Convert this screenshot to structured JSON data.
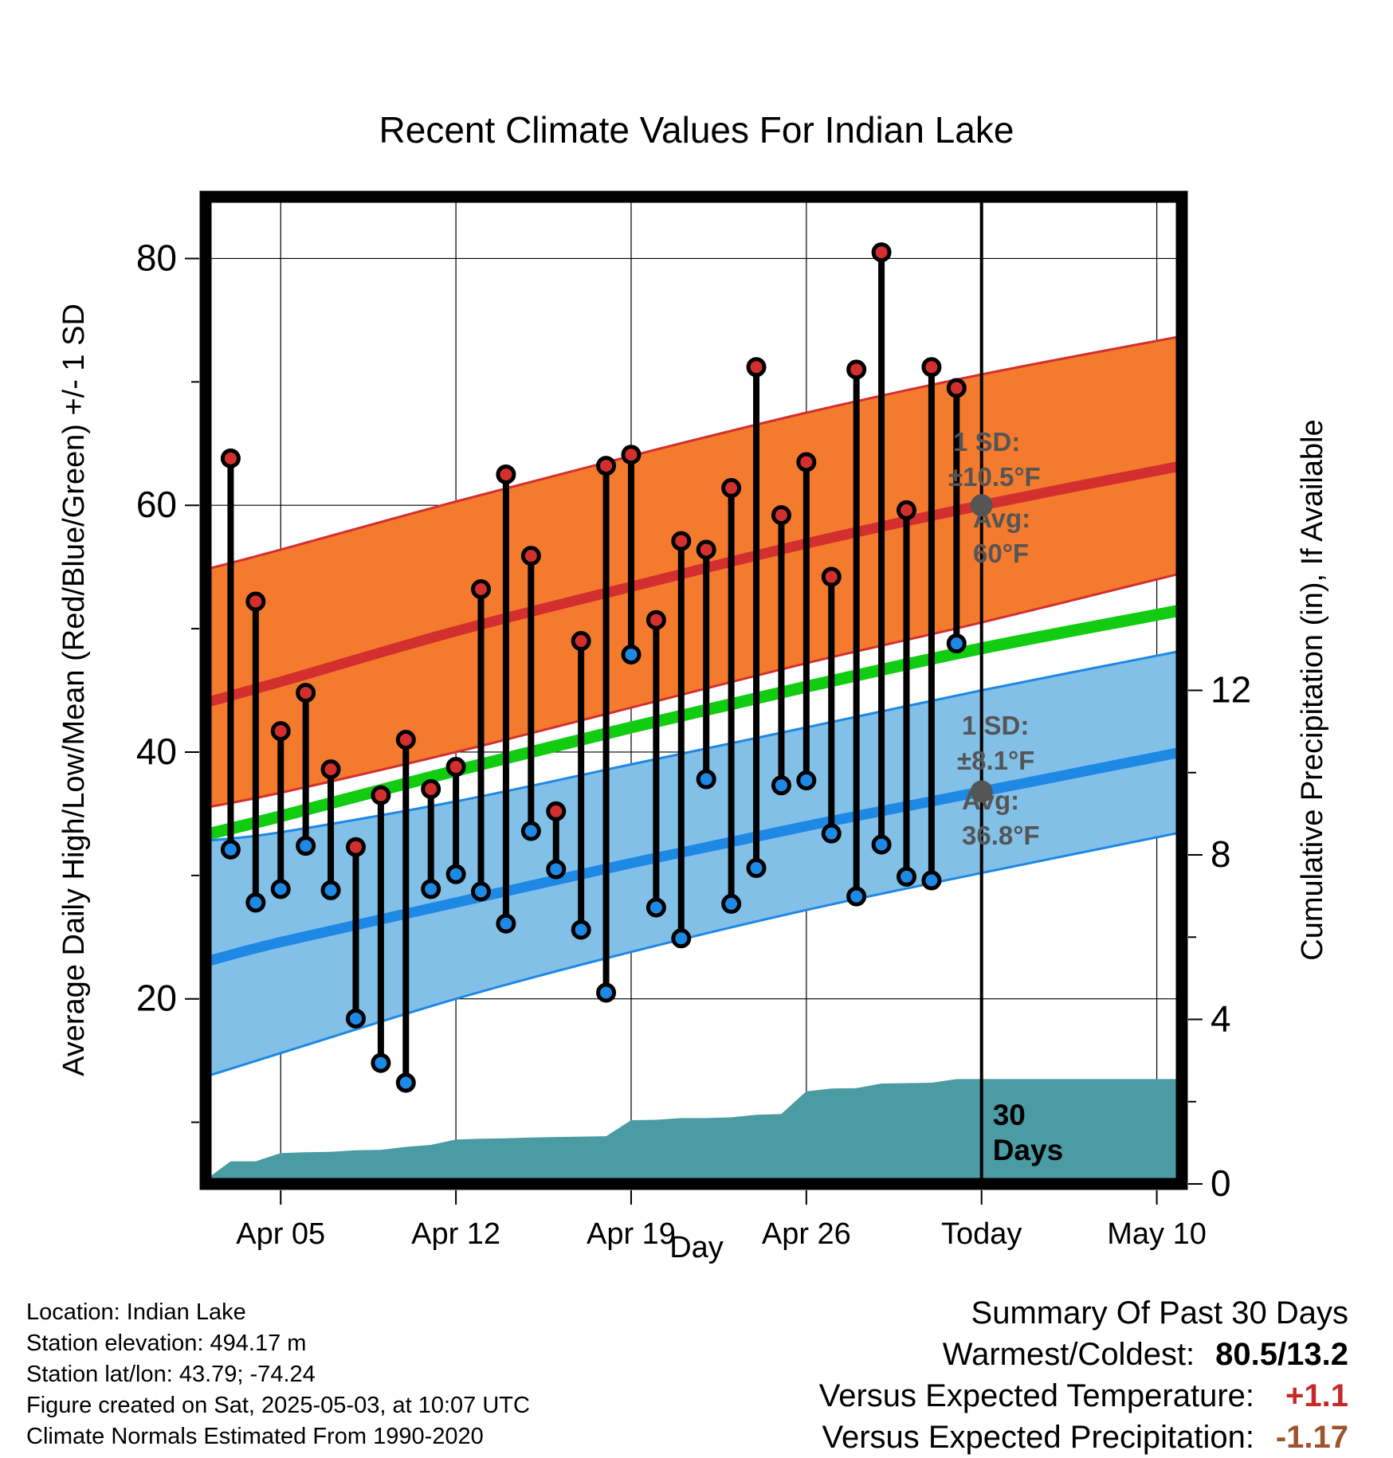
{
  "title": "Recent Climate Values For Indian Lake",
  "chart_data": {
    "type": "line",
    "title": "Recent Climate Values For Indian Lake",
    "xlabel": "Day",
    "ylabel_left": "Average Daily High/Low/Mean (Red/Blue/Green) +/- 1 SD",
    "ylabel_right": "Cumulative Precipitation (in), If Available",
    "x_ticks": [
      "Apr 05",
      "Apr 12",
      "Apr 19",
      "Apr 26",
      "Today",
      "May 10"
    ],
    "y_ticks_left": [
      "20",
      "40",
      "60",
      "80"
    ],
    "y_ticks_right": [
      "0",
      "4",
      "8",
      "12"
    ],
    "ylim_left": [
      5,
      85
    ],
    "ylim_right": [
      0,
      24
    ],
    "x_range_days": [
      "Apr 02",
      "May 11"
    ],
    "grid": true,
    "today_label": "Today",
    "today_date": "May 03",
    "normal_high": {
      "name": "Average Daily High",
      "color": "#d32f2f",
      "band_color": "#f47b2d",
      "sd_label": "1 SD:",
      "sd_value": "±10.5°F",
      "avg_label": "Avg:",
      "avg_value": "60°F",
      "x": [
        "Apr 02",
        "Apr 05",
        "Apr 12",
        "Apr 19",
        "Apr 26",
        "May 03",
        "May 11"
      ],
      "mean": [
        44.0,
        45.7,
        49.8,
        53.4,
        56.9,
        60.0,
        63.2
      ],
      "upper": [
        54.8,
        56.4,
        60.3,
        64.0,
        67.5,
        70.6,
        73.7
      ],
      "lower": [
        35.5,
        36.7,
        40.0,
        43.6,
        47.2,
        50.5,
        54.5
      ]
    },
    "normal_mean": {
      "name": "Average Daily Mean",
      "color": "#11cc11",
      "x": [
        "Apr 02",
        "Apr 05",
        "Apr 12",
        "Apr 19",
        "Apr 26",
        "May 03",
        "May 11"
      ],
      "mean": [
        33.3,
        34.8,
        38.5,
        42.0,
        45.3,
        48.4,
        51.5
      ]
    },
    "normal_low": {
      "name": "Average Daily Low",
      "color": "#1e88e5",
      "band_color": "#82c0e8",
      "sd_label": "1 SD:",
      "sd_value": "±8.1°F",
      "avg_label": "Avg:",
      "avg_value": "36.8°F",
      "x": [
        "Apr 02",
        "Apr 05",
        "Apr 12",
        "Apr 19",
        "Apr 26",
        "May 03",
        "May 11"
      ],
      "mean": [
        23.0,
        24.6,
        27.8,
        31.0,
        34.0,
        36.8,
        40.0
      ],
      "upper": [
        32.8,
        33.5,
        36.0,
        39.0,
        42.0,
        45.0,
        48.2
      ],
      "lower": [
        13.7,
        15.6,
        20.0,
        23.8,
        27.2,
        30.2,
        33.5
      ]
    },
    "daily": {
      "dates": [
        "Apr 03",
        "Apr 04",
        "Apr 05",
        "Apr 06",
        "Apr 07",
        "Apr 08",
        "Apr 09",
        "Apr 10",
        "Apr 11",
        "Apr 12",
        "Apr 13",
        "Apr 14",
        "Apr 15",
        "Apr 16",
        "Apr 17",
        "Apr 18",
        "Apr 19",
        "Apr 20",
        "Apr 21",
        "Apr 22",
        "Apr 23",
        "Apr 24",
        "Apr 25",
        "Apr 26",
        "Apr 27",
        "Apr 28",
        "Apr 29",
        "Apr 30",
        "May 01",
        "May 02"
      ],
      "high": [
        63.8,
        52.2,
        41.7,
        44.8,
        38.6,
        32.3,
        36.5,
        41.0,
        37.0,
        38.8,
        53.2,
        62.5,
        55.9,
        35.2,
        49.0,
        63.2,
        64.1,
        50.7,
        57.1,
        56.4,
        61.4,
        71.2,
        59.2,
        63.5,
        54.2,
        71.0,
        80.5,
        59.6,
        71.2,
        69.5
      ],
      "low": [
        32.1,
        27.8,
        28.9,
        32.4,
        28.8,
        18.4,
        14.8,
        13.2,
        28.9,
        30.1,
        28.7,
        26.1,
        33.6,
        30.5,
        25.6,
        20.5,
        47.9,
        27.4,
        24.9,
        37.8,
        27.7,
        30.6,
        37.3,
        37.7,
        33.4,
        28.3,
        32.5,
        29.9,
        29.6,
        48.8
      ]
    },
    "precipitation": {
      "name": "Cumulative Precipitation",
      "color": "#4a9ba3",
      "dates": [
        "Apr 02",
        "Apr 03",
        "Apr 04",
        "Apr 05",
        "Apr 06",
        "Apr 07",
        "Apr 08",
        "Apr 09",
        "Apr 10",
        "Apr 11",
        "Apr 12",
        "Apr 13",
        "Apr 14",
        "Apr 15",
        "Apr 16",
        "Apr 17",
        "Apr 18",
        "Apr 19",
        "Apr 20",
        "Apr 21",
        "Apr 22",
        "Apr 23",
        "Apr 24",
        "Apr 25",
        "Apr 26",
        "Apr 27",
        "Apr 28",
        "Apr 29",
        "Apr 30",
        "May 01",
        "May 02",
        "May 03",
        "May 11"
      ],
      "values": [
        0.1,
        0.55,
        0.55,
        0.75,
        0.77,
        0.78,
        0.82,
        0.83,
        0.9,
        0.95,
        1.08,
        1.1,
        1.11,
        1.13,
        1.14,
        1.15,
        1.16,
        1.55,
        1.56,
        1.6,
        1.6,
        1.62,
        1.68,
        1.7,
        2.25,
        2.32,
        2.33,
        2.44,
        2.45,
        2.46,
        2.55,
        2.55,
        2.55
      ]
    },
    "annotation_days": "30\nDays"
  },
  "info": {
    "location": "Location: Indian Lake",
    "elevation": "Station elevation: 494.17 m",
    "latlon": "Station lat/lon: 43.79; -74.24",
    "created": "Figure created on Sat, 2025-05-03, at 10:07 UTC",
    "normals": "Climate Normals Estimated From 1990-2020"
  },
  "summary": {
    "heading": "Summary Of Past 30 Days",
    "warm_label": "Warmest/Coldest:",
    "warm_value": "80.5/13.2",
    "temp_label": "Versus Expected Temperature:",
    "temp_value": "+1.1",
    "precip_label": "Versus Expected Precipitation:",
    "precip_value": "-1.17"
  }
}
